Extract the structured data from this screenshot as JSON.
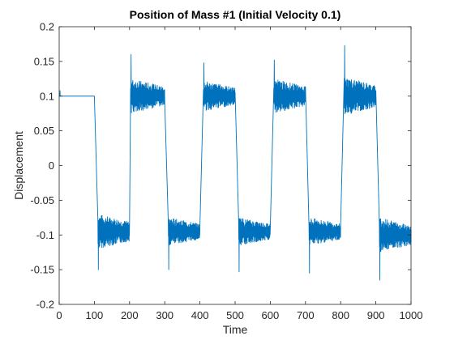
{
  "chart_data": {
    "type": "line",
    "title": "Position of Mass #1 (Initial Velocity 0.1)",
    "xlabel": "Time",
    "ylabel": "Displacement",
    "xlim": [
      0,
      1000
    ],
    "ylim": [
      -0.2,
      0.2
    ],
    "xticks": [
      "0",
      "100",
      "200",
      "300",
      "400",
      "500",
      "600",
      "700",
      "800",
      "900",
      "1000"
    ],
    "yticks": [
      "-0.2",
      "-0.15",
      "-0.1",
      "-0.05",
      "0",
      "0.05",
      "0.1",
      "0.15",
      "0.2"
    ],
    "grid": false,
    "line_color": "#0072BD",
    "series": [
      {
        "segments": [
          {
            "x_start": 0,
            "x_end": 2,
            "level": 0.1,
            "osc": 0.0,
            "spike": 0.0
          },
          {
            "x_start": 2,
            "x_end": 100,
            "level": 0.1,
            "osc": 0.0,
            "spike": 0.0,
            "initial_bump": 0.108
          },
          {
            "x_start": 110,
            "x_end": 200,
            "level": -0.095,
            "osc": 0.025,
            "spike": -0.15
          },
          {
            "x_start": 203,
            "x_end": 300,
            "level": 0.1,
            "osc": 0.025,
            "spike": 0.16
          },
          {
            "x_start": 310,
            "x_end": 400,
            "level": -0.095,
            "osc": 0.02,
            "spike": -0.15
          },
          {
            "x_start": 410,
            "x_end": 500,
            "level": 0.1,
            "osc": 0.022,
            "spike": 0.148
          },
          {
            "x_start": 510,
            "x_end": 600,
            "level": -0.095,
            "osc": 0.02,
            "spike": -0.153
          },
          {
            "x_start": 610,
            "x_end": 700,
            "level": 0.1,
            "osc": 0.025,
            "spike": 0.152
          },
          {
            "x_start": 710,
            "x_end": 800,
            "level": -0.095,
            "osc": 0.02,
            "spike": -0.155
          },
          {
            "x_start": 810,
            "x_end": 900,
            "level": 0.1,
            "osc": 0.028,
            "spike": 0.173
          },
          {
            "x_start": 910,
            "x_end": 1000,
            "level": -0.1,
            "osc": 0.025,
            "spike": -0.165
          }
        ]
      }
    ]
  }
}
